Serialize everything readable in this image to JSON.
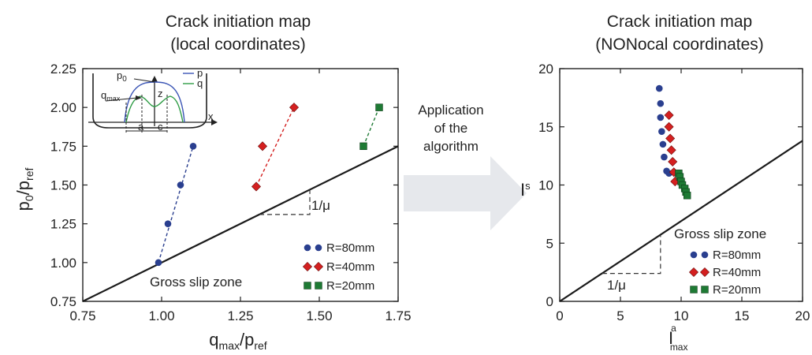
{
  "chart_data": [
    {
      "type": "scatter",
      "title": "Crack initiation map",
      "subtitle": "(local coordinates)",
      "xlabel": {
        "main": "q",
        "sub1": "max",
        "mid": "/p",
        "sub2": "ref"
      },
      "ylabel": {
        "main": "p",
        "sub1": "0",
        "mid": "/p",
        "sub2": "ref"
      },
      "xlim": [
        0.75,
        1.75
      ],
      "ylim": [
        0.75,
        2.25
      ],
      "xticks": [
        "0.75",
        "1.00",
        "1.25",
        "1.50",
        "1.75"
      ],
      "yticks": [
        "0.75",
        "1.00",
        "1.25",
        "1.50",
        "1.75",
        "2.00",
        "2.25"
      ],
      "series": [
        {
          "name": "R=80mm",
          "marker": "circle",
          "color": "#2a3f8f",
          "x": [
            0.99,
            1.02,
            1.06,
            1.1
          ],
          "y": [
            1.0,
            1.25,
            1.5,
            1.75
          ]
        },
        {
          "name": "R=40mm",
          "marker": "diamond",
          "color": "#d42020",
          "x": [
            1.3,
            1.32,
            1.42
          ],
          "y": [
            1.49,
            1.75,
            2.0
          ]
        },
        {
          "name": "R=20mm",
          "marker": "square",
          "color": "#1e7a34",
          "x": [
            1.64,
            1.69
          ],
          "y": [
            1.75,
            2.0
          ]
        }
      ],
      "slip_line": {
        "x": [
          0.75,
          1.75
        ],
        "y": [
          0.75,
          1.75
        ]
      },
      "annotations": {
        "zone": "Gross slip zone",
        "slope": "1/μ"
      },
      "legend_position": "lower-right",
      "inset": {
        "p0": "p",
        "p0_sub": "0",
        "p": "p",
        "q": "q",
        "qmax": "q",
        "qmax_sub": "max",
        "z": "z",
        "x": "x",
        "a": "a",
        "c": "c",
        "p_color": "#3b55b5",
        "q_color": "#2e9c45"
      }
    },
    {
      "type": "scatter",
      "title": "Crack initiation map",
      "subtitle": "(NONocal coordinates)",
      "xlabel": {
        "main": "I",
        "sup": "a",
        "sub": "max"
      },
      "ylabel": {
        "main": "I",
        "sup": "s"
      },
      "xlim": [
        0,
        20
      ],
      "ylim": [
        0,
        20
      ],
      "xticks": [
        "0",
        "5",
        "10",
        "15",
        "20"
      ],
      "yticks": [
        "0",
        "5",
        "10",
        "15",
        "20"
      ],
      "series": [
        {
          "name": "R=80mm",
          "marker": "circle",
          "color": "#2a3f8f",
          "x": [
            8.2,
            8.3,
            8.3,
            8.4,
            8.5,
            8.6,
            8.8,
            9.0
          ],
          "y": [
            18.3,
            17.0,
            15.8,
            14.6,
            13.5,
            12.4,
            11.2,
            11.0
          ]
        },
        {
          "name": "R=40mm",
          "marker": "diamond",
          "color": "#d42020",
          "x": [
            9.0,
            9.0,
            9.1,
            9.2,
            9.3,
            9.4,
            9.5
          ],
          "y": [
            16.0,
            15.0,
            14.0,
            13.0,
            12.0,
            11.1,
            10.3
          ]
        },
        {
          "name": "R=20mm",
          "marker": "square",
          "color": "#1e7a34",
          "x": [
            9.8,
            9.9,
            10.0,
            10.1,
            10.3,
            10.4,
            10.5
          ],
          "y": [
            11.0,
            10.7,
            10.3,
            10.0,
            9.7,
            9.4,
            9.1
          ]
        }
      ],
      "slip_line": {
        "x": [
          0,
          20
        ],
        "y": [
          0,
          13.8
        ]
      },
      "annotations": {
        "zone": "Gross slip zone",
        "slope": "1/μ"
      },
      "legend_position": "lower-right"
    }
  ],
  "middle": {
    "lines": [
      "Application",
      "of the",
      "algorithm"
    ]
  },
  "colors": {
    "axis": "#222222",
    "arrow": "#e6e8ec"
  }
}
